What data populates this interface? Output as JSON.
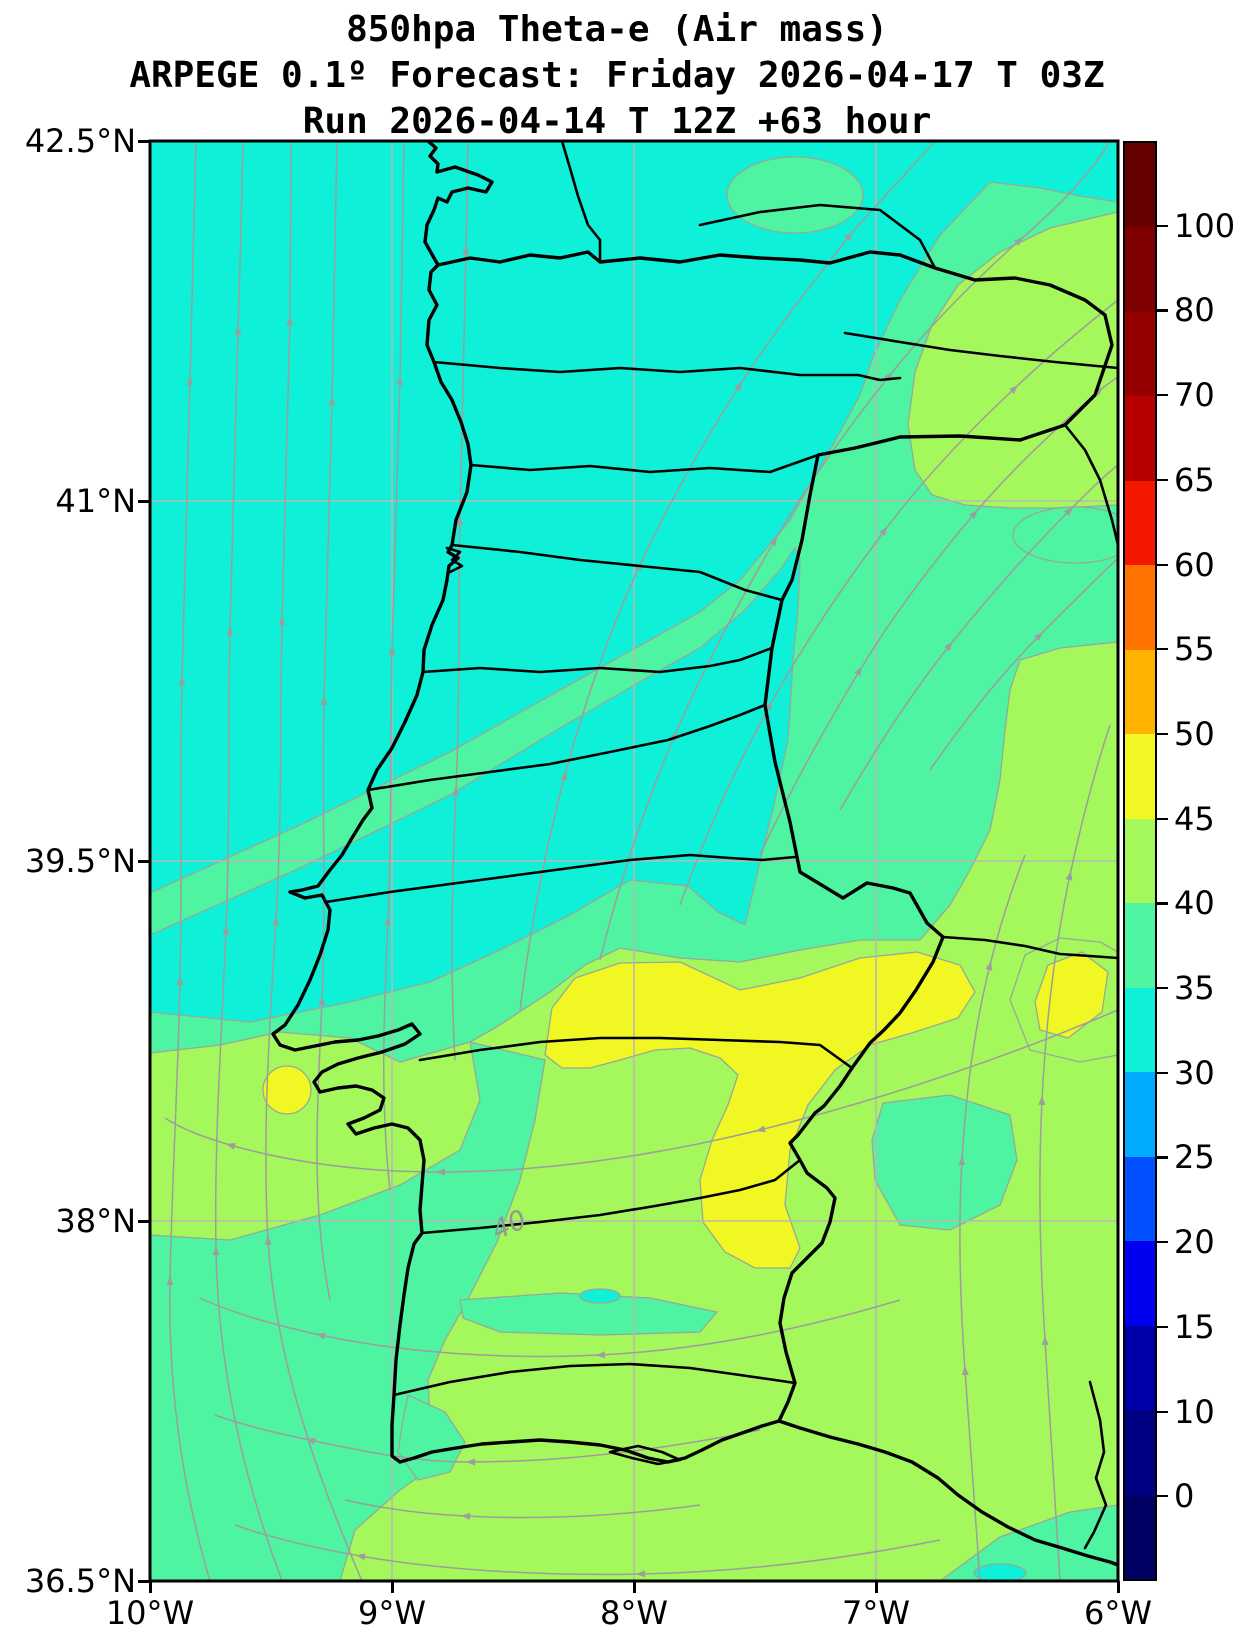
{
  "title": {
    "line1": "850hpa Theta-e (Air mass)",
    "line2": "ARPEGE 0.1º Forecast: Friday 2026-04-17 T 03Z",
    "line3": "Run 2026-04-14 T 12Z +63 hour"
  },
  "axes": {
    "y_ticks": [
      "42.5°N",
      "41°N",
      "39.5°N",
      "38°N",
      "36.5°N"
    ],
    "x_ticks": [
      "10°W",
      "9°W",
      "8°W",
      "7°W",
      "6°W"
    ]
  },
  "colorbar": {
    "tick_labels_top_to_bottom": [
      "100",
      "80",
      "70",
      "65",
      "60",
      "55",
      "50",
      "45",
      "40",
      "35",
      "30",
      "25",
      "20",
      "15",
      "10",
      "0"
    ],
    "segment_colors_top_to_bottom": [
      "#640000",
      "#7f0000",
      "#960000",
      "#b80000",
      "#f51800",
      "#ff7400",
      "#ffb200",
      "#f1f722",
      "#a4f85c",
      "#4ef4a1",
      "#0ff0d8",
      "#00acff",
      "#0050ff",
      "#0000f0",
      "#0000aa",
      "#000082",
      "#000064"
    ]
  },
  "map": {
    "contour_label": "40",
    "level_colors": {
      "30-35": "#0ff0d8",
      "35-40": "#4ef4a1",
      "40-45": "#a4f85c",
      "45-50": "#f1f722"
    },
    "boundary_color": "#000000",
    "streamline_color": "#9d9d9d",
    "grid_color": "#b8b8b8",
    "contour_line_color": "#98a898",
    "contour_label_color": "#8f9b8f"
  },
  "chart_data": {
    "type": "heatmap",
    "subtype": "filled-contour weather map with streamlines",
    "title": "850hpa Theta-e (Air mass)",
    "model_line": "ARPEGE 0.1º Forecast: Friday 2026-04-17 T 03Z",
    "run_line": "Run 2026-04-14 T 12Z +63 hour",
    "model": "ARPEGE 0.1º",
    "variable": "850hpa Theta-e (Air mass)",
    "valid_time": "Friday 2026-04-17 T 03Z",
    "run_time": "2026-04-14 T 12Z",
    "forecast_hour": "+63 hour",
    "region": "Portugal / western Iberia",
    "xlabel": "",
    "ylabel": "",
    "x_tick_labels": [
      "10°W",
      "9°W",
      "8°W",
      "7°W",
      "6°W"
    ],
    "y_tick_labels": [
      "42.5°N",
      "41°N",
      "39.5°N",
      "38°N",
      "36.5°N"
    ],
    "lon_range_deg": [
      -10,
      -6
    ],
    "lat_range_deg": [
      36.5,
      42.5
    ],
    "grid": true,
    "legend_position": "right colorbar",
    "colorbar_boundaries": [
      0,
      10,
      15,
      20,
      25,
      30,
      35,
      40,
      45,
      50,
      55,
      60,
      65,
      70,
      80,
      100
    ],
    "colorbar_extend": "both",
    "field_values_in_view": {
      "northwest_ocean_and_north_portugal": "30-35 (cyan)",
      "diagonal_bands_center": "35-40 (spring green) alternating with 30-35 wedge over central Portugal",
      "southeast_and_south": "40-45 (green-yellow)",
      "yellow_cores_45_50": [
        {
          "approx_lon": -8.8,
          "approx_lat": 38.55
        },
        {
          "approx_lon": -7.0,
          "approx_lat": 38.9
        },
        {
          "approx_lon": -6.9,
          "approx_lat": 38.0
        },
        {
          "approx_lon": -6.35,
          "approx_lat": 38.35
        }
      ],
      "labeled_contour": {
        "value": 40,
        "approx_lon": -8.57,
        "approx_lat": 37.97
      }
    },
    "streamlines": {
      "color": "#9d9d9d",
      "flow_pattern": "northward over the Atlantic west of Portugal, veering north-northeast over northern and eastern Iberia; westward flow along the Gulf of Cadiz in the south"
    }
  }
}
